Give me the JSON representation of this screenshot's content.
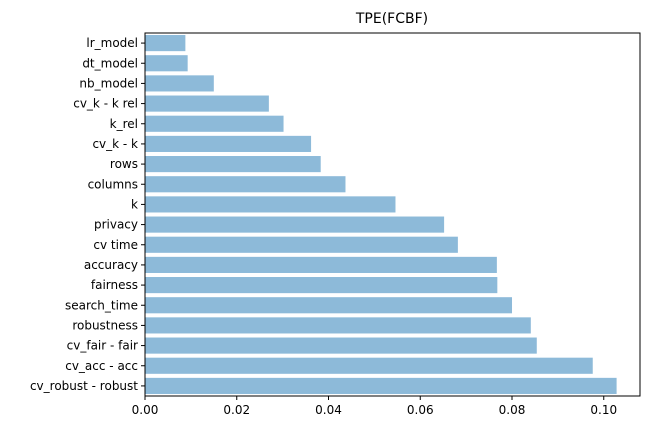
{
  "chart_data": {
    "type": "bar",
    "orientation": "horizontal",
    "title": "TPE(FCBF)",
    "xlabel": "",
    "ylabel": "",
    "categories": [
      "lr_model",
      "dt_model",
      "nb_model",
      "cv_k - k rel",
      "k_rel",
      "cv_k - k",
      "rows",
      "columns",
      "k",
      "privacy",
      "cv time",
      "accuracy",
      "fairness",
      "search_time",
      "robustness",
      "cv_fair - fair",
      "cv_acc - acc",
      "cv_robust - robust"
    ],
    "values": [
      0.0088,
      0.0093,
      0.015,
      0.027,
      0.0302,
      0.0362,
      0.0383,
      0.0437,
      0.0546,
      0.0652,
      0.0682,
      0.0767,
      0.0768,
      0.08,
      0.0841,
      0.0854,
      0.0976,
      0.1028
    ],
    "xlim": [
      0,
      0.1079
    ],
    "xticks": [
      0.0,
      0.02,
      0.04,
      0.06,
      0.08,
      0.1
    ],
    "xtick_labels": [
      "0.00",
      "0.02",
      "0.04",
      "0.06",
      "0.08",
      "0.10"
    ],
    "bar_color": "#8dbad9",
    "grid": false,
    "legend": "none"
  }
}
